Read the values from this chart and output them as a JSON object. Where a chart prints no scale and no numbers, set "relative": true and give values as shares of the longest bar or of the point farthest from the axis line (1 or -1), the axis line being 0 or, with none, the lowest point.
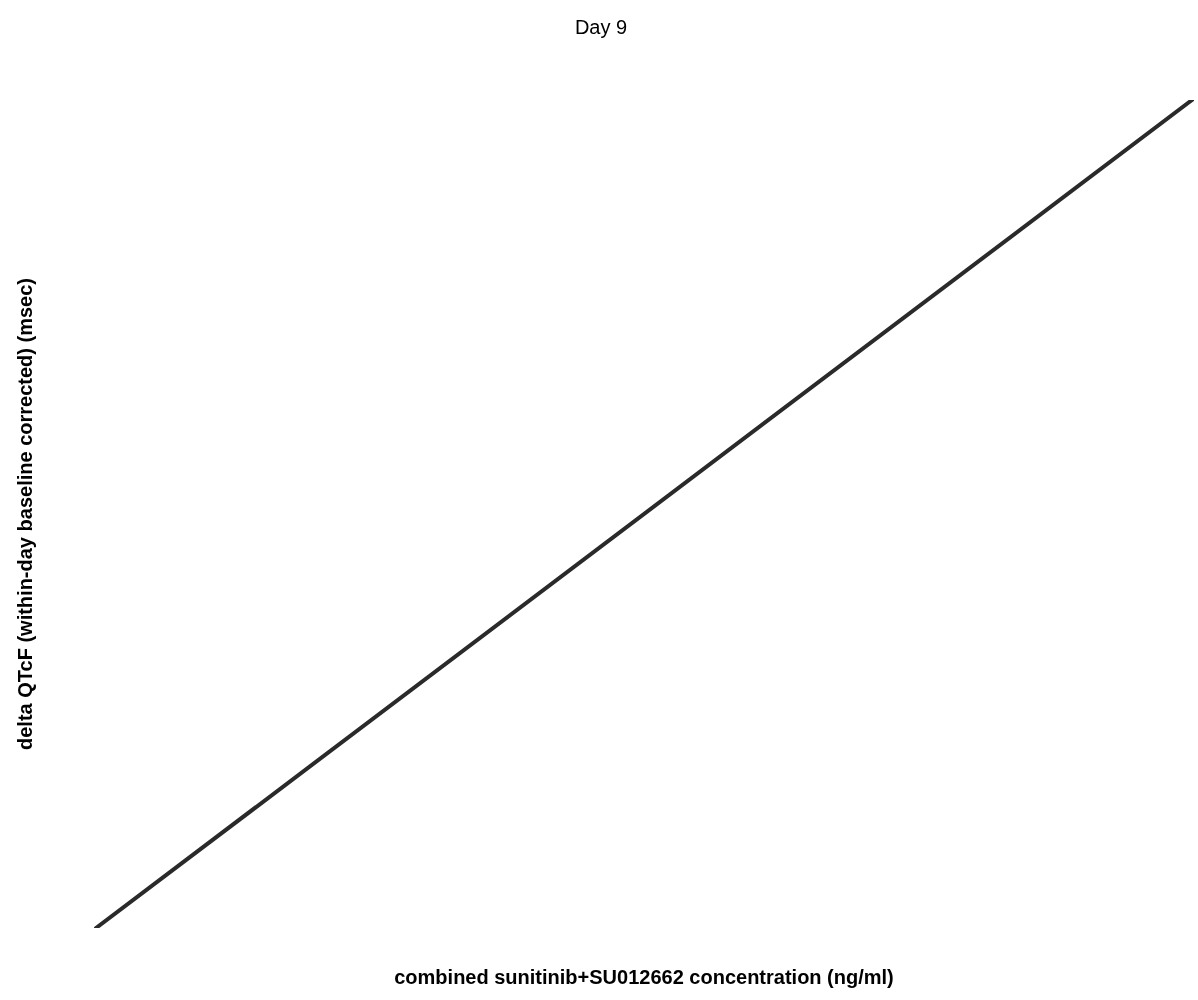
{
  "chart_data": {
    "type": "line",
    "title": "Day 9",
    "xlabel": "combined sunitinib+SU012662 concentration (ng/ml)",
    "ylabel": "delta QTcF (within-day baseline corrected) (msec)",
    "relative": true,
    "categories": [
      null,
      null
    ],
    "series": [
      {
        "color": "#2a2a2a",
        "values": [
          0,
          1
        ]
      }
    ],
    "legend": false,
    "grid": false,
    "marker": "none",
    "line_style": "solid"
  }
}
